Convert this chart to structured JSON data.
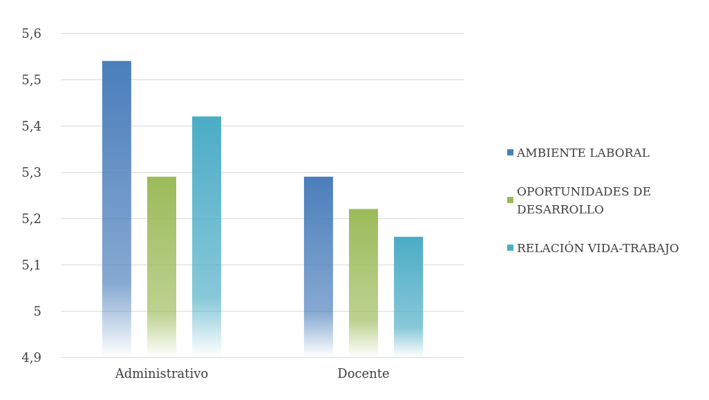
{
  "chart_data": {
    "type": "bar",
    "categories": [
      "Administrativo",
      "Docente"
    ],
    "series": [
      {
        "name": "AMBIENTE LABORAL",
        "color": "#4a7ebb",
        "values": [
          5.54,
          5.29
        ]
      },
      {
        "name": "OPORTUNIDADES DE DESARROLLO",
        "color": "#9bbb59",
        "values": [
          5.29,
          5.22
        ]
      },
      {
        "name": "RELACIÓN VIDA-TRABAJO",
        "color": "#4bacc6",
        "values": [
          5.42,
          5.16
        ]
      }
    ],
    "ylim": [
      4.9,
      5.6
    ],
    "yticks": [
      {
        "value": 4.9,
        "label": "4,9"
      },
      5,
      {
        "value": 5.1,
        "label": "5,1"
      },
      {
        "value": 5.2,
        "label": "5,2"
      },
      {
        "value": 5.3,
        "label": "5,3"
      },
      {
        "value": 5.4,
        "label": "5,4"
      },
      {
        "value": 5.5,
        "label": "5,5"
      },
      {
        "value": 5.6,
        "label": "5,6"
      }
    ],
    "grid": "y",
    "legend": "right"
  }
}
